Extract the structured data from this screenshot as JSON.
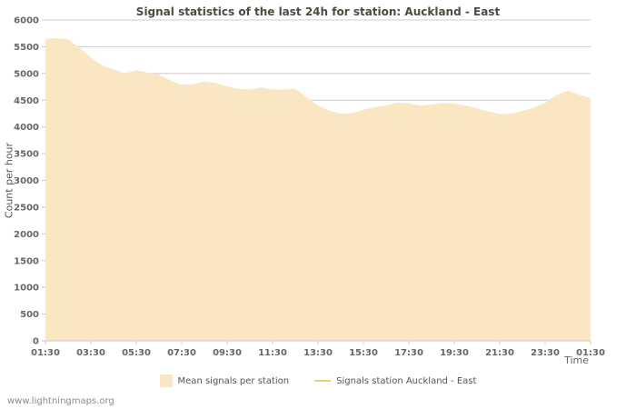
{
  "page": {
    "watermark": "www.lightningmaps.org"
  },
  "chart_data": {
    "type": "area",
    "title": "Signal statistics of the last 24h for station: Auckland - East",
    "xlabel": "Time",
    "ylabel": "Count per hour",
    "ylim": [
      0,
      6000
    ],
    "y_ticks": [
      0,
      500,
      1000,
      1500,
      2000,
      2500,
      3000,
      3500,
      4000,
      4500,
      5000,
      5500,
      6000
    ],
    "x_tick_labels": [
      "01:30",
      "03:30",
      "05:30",
      "07:30",
      "09:30",
      "11:30",
      "13:30",
      "15:30",
      "17:30",
      "19:30",
      "21:30",
      "23:30",
      "01:30"
    ],
    "x_step_minutes": 30,
    "grid": true,
    "legend_position": "bottom",
    "colors": {
      "grid": "#cccccc",
      "axis": "#cccccc",
      "text": "#666666"
    },
    "series": [
      {
        "name": "Mean signals per station",
        "kind": "area",
        "color": "#fbe6c3",
        "values": [
          5650,
          5660,
          5640,
          5480,
          5300,
          5150,
          5080,
          5000,
          5060,
          5020,
          4980,
          4870,
          4790,
          4800,
          4850,
          4820,
          4760,
          4710,
          4700,
          4740,
          4700,
          4700,
          4710,
          4560,
          4400,
          4300,
          4250,
          4260,
          4320,
          4370,
          4400,
          4460,
          4440,
          4400,
          4420,
          4450,
          4440,
          4400,
          4350,
          4290,
          4240,
          4250,
          4300,
          4360,
          4450,
          4600,
          4680,
          4600,
          4540
        ]
      },
      {
        "name": "Signals station Auckland - East",
        "kind": "line",
        "color": "#e3d470",
        "values": []
      }
    ],
    "legend": [
      {
        "label": "Mean signals per station",
        "swatch": "area",
        "color": "#fbe6c3"
      },
      {
        "label": "Signals station Auckland - East",
        "swatch": "line",
        "color": "#e3d470"
      }
    ]
  }
}
